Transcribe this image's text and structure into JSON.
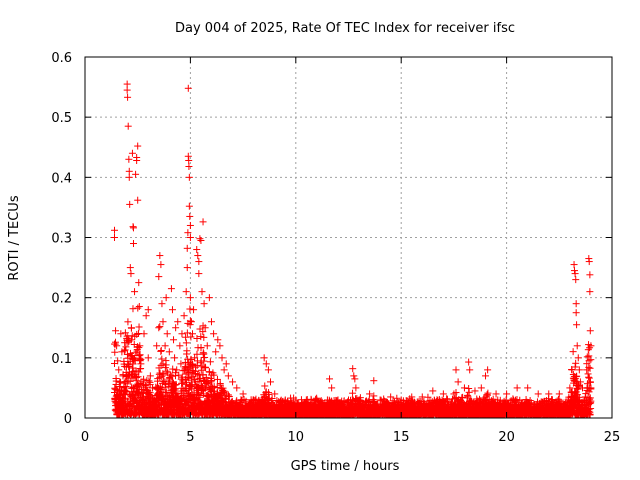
{
  "chart_data": {
    "type": "scatter",
    "title": "Day 004 of 2025, Rate Of TEC Index for receiver ifsc",
    "xlabel": "GPS time / hours",
    "ylabel": "ROTI / TECUs",
    "xlim": [
      0,
      25
    ],
    "ylim": [
      0,
      0.6
    ],
    "xticks": [
      0,
      5,
      10,
      15,
      20,
      25
    ],
    "xtick_labels": [
      "0",
      "5",
      "10",
      "15",
      "20",
      "25"
    ],
    "yticks": [
      0,
      0.1,
      0.2,
      0.3,
      0.4,
      0.5,
      0.6
    ],
    "ytick_labels": [
      "0",
      "0.1",
      "0.2",
      "0.3",
      "0.4",
      "0.5",
      "0.6"
    ],
    "grid": true,
    "marker": "+",
    "color": "#ff0000",
    "series": [
      {
        "name": "ROTI",
        "points": [
          [
            1.4,
            0.312
          ],
          [
            1.4,
            0.3
          ],
          [
            1.45,
            0.145
          ],
          [
            1.5,
            0.12
          ],
          [
            1.55,
            0.095
          ],
          [
            1.6,
            0.08
          ],
          [
            1.65,
            0.06
          ],
          [
            1.7,
            0.14
          ],
          [
            1.75,
            0.11
          ],
          [
            1.8,
            0.07
          ],
          [
            1.85,
            0.05
          ],
          [
            1.9,
            0.03
          ],
          [
            1.95,
            0.02
          ],
          [
            2.0,
            0.555
          ],
          [
            2.0,
            0.545
          ],
          [
            2.02,
            0.533
          ],
          [
            2.05,
            0.485
          ],
          [
            2.08,
            0.43
          ],
          [
            2.1,
            0.41
          ],
          [
            2.1,
            0.4
          ],
          [
            2.12,
            0.355
          ],
          [
            2.15,
            0.25
          ],
          [
            2.18,
            0.24
          ],
          [
            2.2,
            0.15
          ],
          [
            2.2,
            0.13
          ],
          [
            2.25,
            0.1
          ],
          [
            2.25,
            0.44
          ],
          [
            2.28,
            0.318
          ],
          [
            2.3,
            0.316
          ],
          [
            2.3,
            0.29
          ],
          [
            2.35,
            0.21
          ],
          [
            2.4,
            0.405
          ],
          [
            2.45,
            0.433
          ],
          [
            2.45,
            0.428
          ],
          [
            2.5,
            0.452
          ],
          [
            2.5,
            0.362
          ],
          [
            2.55,
            0.225
          ],
          [
            2.6,
            0.12
          ],
          [
            2.65,
            0.09
          ],
          [
            2.7,
            0.06
          ],
          [
            2.8,
            0.14
          ],
          [
            2.9,
            0.17
          ],
          [
            3.0,
            0.18
          ],
          [
            3.0,
            0.1
          ],
          [
            3.1,
            0.07
          ],
          [
            3.2,
            0.05
          ],
          [
            3.3,
            0.03
          ],
          [
            3.4,
            0.12
          ],
          [
            3.5,
            0.15
          ],
          [
            3.5,
            0.235
          ],
          [
            3.55,
            0.27
          ],
          [
            3.6,
            0.255
          ],
          [
            3.65,
            0.19
          ],
          [
            3.7,
            0.16
          ],
          [
            3.7,
            0.09
          ],
          [
            3.8,
            0.12
          ],
          [
            3.85,
            0.2
          ],
          [
            3.9,
            0.14
          ],
          [
            4.0,
            0.11
          ],
          [
            4.0,
            0.06
          ],
          [
            4.1,
            0.215
          ],
          [
            4.15,
            0.18
          ],
          [
            4.2,
            0.13
          ],
          [
            4.25,
            0.1
          ],
          [
            4.3,
            0.15
          ],
          [
            4.35,
            0.08
          ],
          [
            4.4,
            0.16
          ],
          [
            4.5,
            0.12
          ],
          [
            4.55,
            0.09
          ],
          [
            4.6,
            0.14
          ],
          [
            4.7,
            0.17
          ],
          [
            4.8,
            0.21
          ],
          [
            4.85,
            0.25
          ],
          [
            4.85,
            0.282
          ],
          [
            4.88,
            0.308
          ],
          [
            4.9,
            0.548
          ],
          [
            4.9,
            0.435
          ],
          [
            4.92,
            0.428
          ],
          [
            4.93,
            0.418
          ],
          [
            4.95,
            0.4
          ],
          [
            4.95,
            0.352
          ],
          [
            4.97,
            0.335
          ],
          [
            5.0,
            0.32
          ],
          [
            5.0,
            0.3
          ],
          [
            5.0,
            0.2
          ],
          [
            5.05,
            0.16
          ],
          [
            5.1,
            0.14
          ],
          [
            5.15,
            0.18
          ],
          [
            5.2,
            0.1
          ],
          [
            5.25,
            0.06
          ],
          [
            5.3,
            0.28
          ],
          [
            5.35,
            0.27
          ],
          [
            5.4,
            0.26
          ],
          [
            5.4,
            0.24
          ],
          [
            5.45,
            0.298
          ],
          [
            5.5,
            0.295
          ],
          [
            5.55,
            0.21
          ],
          [
            5.6,
            0.326
          ],
          [
            5.65,
            0.19
          ],
          [
            5.7,
            0.15
          ],
          [
            5.8,
            0.12
          ],
          [
            5.9,
            0.2
          ],
          [
            6.0,
            0.16
          ],
          [
            6.1,
            0.14
          ],
          [
            6.2,
            0.11
          ],
          [
            6.3,
            0.13
          ],
          [
            6.4,
            0.12
          ],
          [
            6.5,
            0.1
          ],
          [
            6.6,
            0.08
          ],
          [
            6.7,
            0.09
          ],
          [
            6.8,
            0.07
          ],
          [
            7.0,
            0.06
          ],
          [
            7.2,
            0.05
          ],
          [
            7.5,
            0.04
          ],
          [
            8.0,
            0.03
          ],
          [
            8.5,
            0.1
          ],
          [
            8.6,
            0.09
          ],
          [
            8.7,
            0.08
          ],
          [
            8.8,
            0.06
          ],
          [
            9.0,
            0.04
          ],
          [
            9.5,
            0.03
          ],
          [
            10.0,
            0.03
          ],
          [
            10.5,
            0.03
          ],
          [
            11.0,
            0.03
          ],
          [
            11.5,
            0.03
          ],
          [
            11.6,
            0.065
          ],
          [
            11.7,
            0.05
          ],
          [
            12.0,
            0.03
          ],
          [
            12.5,
            0.03
          ],
          [
            12.7,
            0.082
          ],
          [
            12.75,
            0.07
          ],
          [
            12.8,
            0.065
          ],
          [
            12.85,
            0.05
          ],
          [
            13.0,
            0.03
          ],
          [
            13.5,
            0.04
          ],
          [
            13.7,
            0.062
          ],
          [
            14.0,
            0.03
          ],
          [
            14.5,
            0.035
          ],
          [
            15.0,
            0.03
          ],
          [
            15.5,
            0.035
          ],
          [
            16.0,
            0.035
          ],
          [
            16.5,
            0.045
          ],
          [
            17.0,
            0.04
          ],
          [
            17.5,
            0.04
          ],
          [
            17.6,
            0.08
          ],
          [
            17.7,
            0.06
          ],
          [
            18.0,
            0.05
          ],
          [
            18.2,
            0.093
          ],
          [
            18.25,
            0.08
          ],
          [
            18.5,
            0.045
          ],
          [
            18.8,
            0.05
          ],
          [
            19.0,
            0.07
          ],
          [
            19.1,
            0.08
          ],
          [
            19.5,
            0.04
          ],
          [
            20.0,
            0.04
          ],
          [
            20.5,
            0.05
          ],
          [
            21.0,
            0.05
          ],
          [
            21.5,
            0.04
          ],
          [
            22.0,
            0.04
          ],
          [
            22.5,
            0.04
          ],
          [
            23.0,
            0.05
          ],
          [
            23.1,
            0.08
          ],
          [
            23.2,
            0.255
          ],
          [
            23.22,
            0.245
          ],
          [
            23.25,
            0.24
          ],
          [
            23.28,
            0.23
          ],
          [
            23.3,
            0.19
          ],
          [
            23.3,
            0.175
          ],
          [
            23.32,
            0.155
          ],
          [
            23.35,
            0.12
          ],
          [
            23.4,
            0.1
          ],
          [
            23.45,
            0.08
          ],
          [
            23.5,
            0.06
          ],
          [
            23.6,
            0.05
          ],
          [
            23.8,
            0.08
          ],
          [
            23.9,
            0.265
          ],
          [
            23.92,
            0.26
          ],
          [
            23.95,
            0.238
          ],
          [
            23.95,
            0.21
          ],
          [
            23.97,
            0.145
          ],
          [
            24.0,
            0.12
          ],
          [
            24.0,
            0.05
          ]
        ]
      }
    ]
  }
}
